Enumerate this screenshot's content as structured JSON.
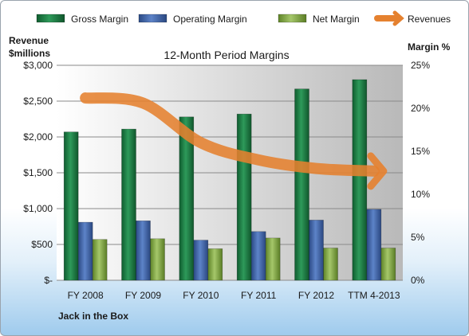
{
  "chart_data": {
    "type": "bar",
    "title": "12-Month Period Margins",
    "footer": "Jack in the Box",
    "legend_position": "top",
    "grid": true,
    "categories": [
      "FY 2008",
      "FY 2009",
      "FY 2010",
      "FY 2011",
      "FY 2012",
      "TTM 4-2013"
    ],
    "y_left": {
      "label_line1": "Revenue",
      "label_line2": "$millions",
      "ticks": [
        "$-",
        "$500",
        "$1,000",
        "$1,500",
        "$2,000",
        "$2,500",
        "$3,000"
      ],
      "range": [
        0,
        3000
      ]
    },
    "y_right": {
      "label": "Margin %",
      "ticks": [
        "0%",
        "5%",
        "10%",
        "15%",
        "20%",
        "25%"
      ],
      "range": [
        0,
        25
      ]
    },
    "series": [
      {
        "name": "Gross Margin",
        "axis": "left",
        "color": "#1e7a45",
        "values": [
          2070,
          2110,
          2280,
          2320,
          2670,
          2800
        ]
      },
      {
        "name": "Operating Margin",
        "axis": "left",
        "color": "#3e63a6",
        "values": [
          810,
          830,
          560,
          680,
          840,
          990
        ]
      },
      {
        "name": "Net Margin",
        "axis": "left",
        "color": "#7fa83c",
        "values": [
          570,
          580,
          440,
          590,
          450,
          450
        ]
      },
      {
        "name": "Revenues",
        "axis": "right",
        "type": "line",
        "color": "#e5812f",
        "values": [
          21.2,
          20.6,
          16.0,
          14.0,
          13.0,
          12.7
        ]
      }
    ]
  }
}
